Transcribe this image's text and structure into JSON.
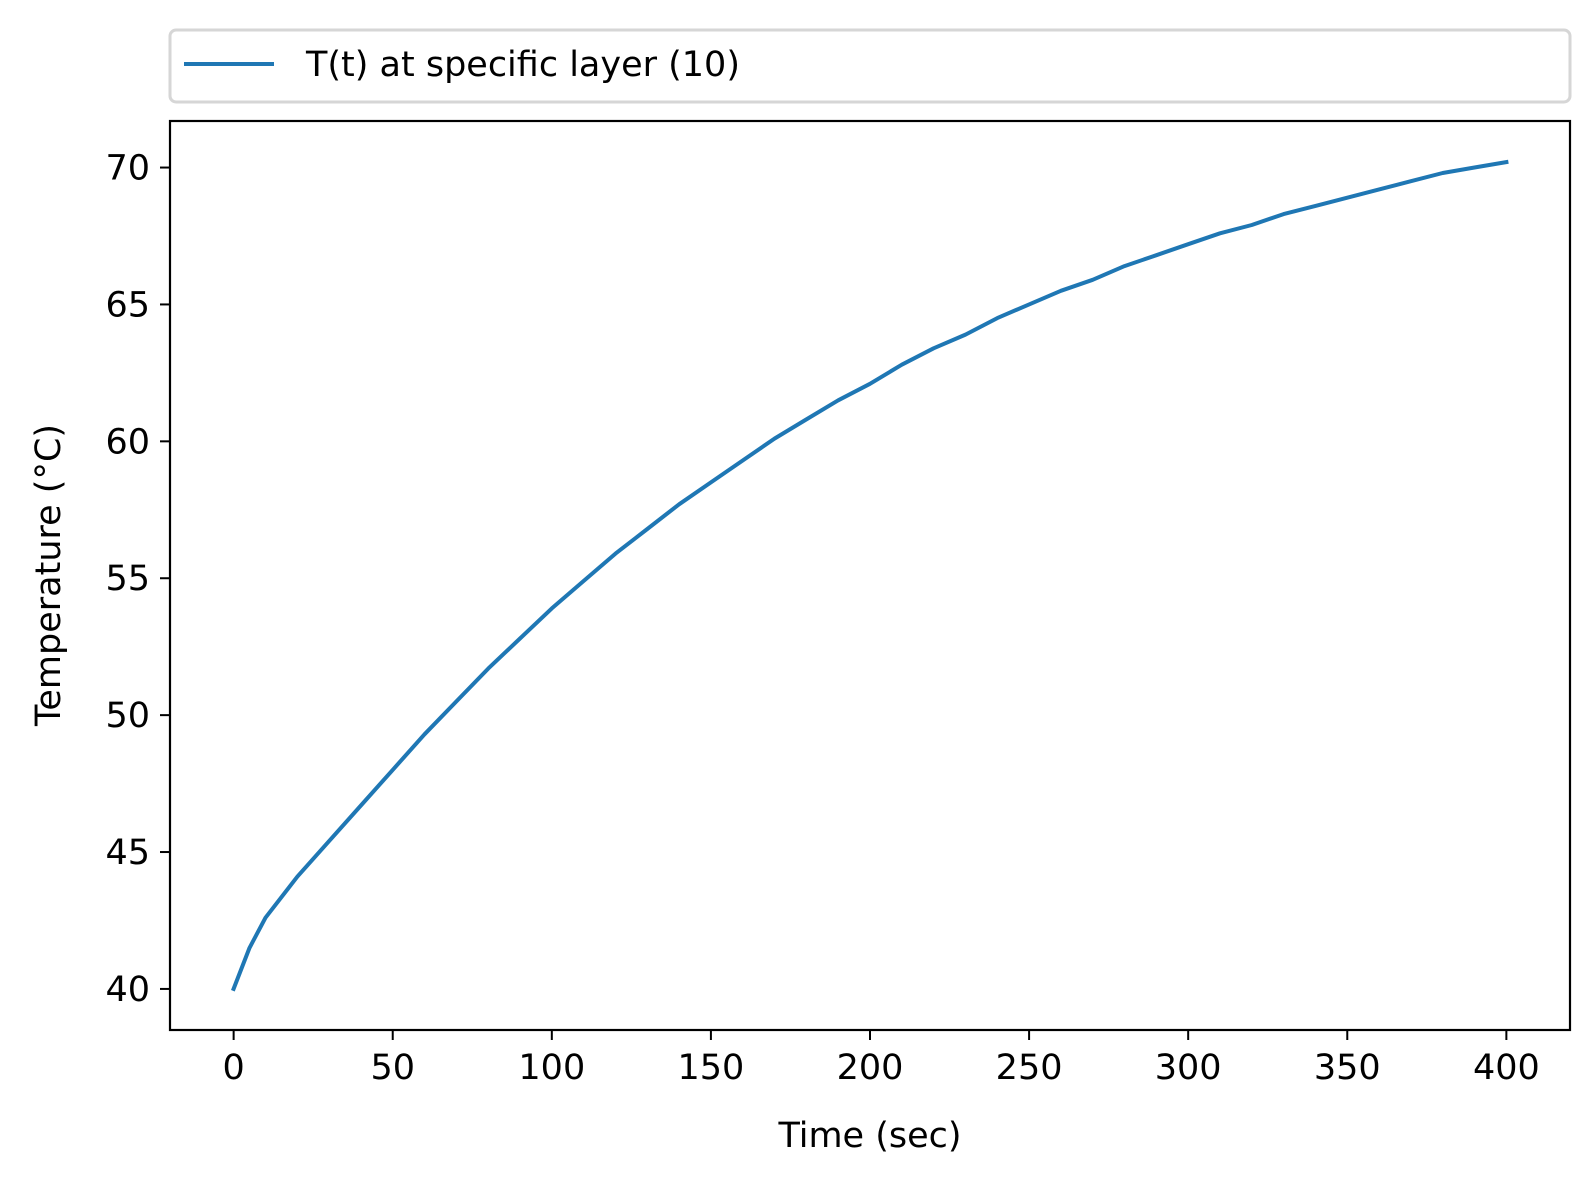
{
  "chart_data": {
    "type": "line",
    "title": "",
    "xlabel": "Time (sec)",
    "ylabel": "Temperature (°C)",
    "xlim": [
      -20,
      420
    ],
    "ylim": [
      38.5,
      71.7
    ],
    "xticks": [
      0,
      50,
      100,
      150,
      200,
      250,
      300,
      350,
      400
    ],
    "yticks": [
      40,
      45,
      50,
      55,
      60,
      65,
      70
    ],
    "xtick_labels": [
      "0",
      "50",
      "100",
      "150",
      "200",
      "250",
      "300",
      "350",
      "400"
    ],
    "ytick_labels": [
      "40",
      "45",
      "50",
      "55",
      "60",
      "65",
      "70"
    ],
    "grid": false,
    "legend": {
      "placement": "top, above plot"
    },
    "series": [
      {
        "name": "T(t) at specific layer (10)",
        "color": "#1f77b4",
        "x": [
          0,
          5,
          10,
          20,
          30,
          40,
          50,
          60,
          70,
          80,
          90,
          100,
          110,
          120,
          130,
          140,
          150,
          160,
          170,
          180,
          190,
          200,
          210,
          220,
          230,
          240,
          250,
          260,
          270,
          280,
          290,
          300,
          310,
          320,
          330,
          340,
          350,
          360,
          370,
          380,
          390,
          400
        ],
        "y": [
          40.0,
          41.5,
          42.6,
          44.1,
          45.4,
          46.7,
          48.0,
          49.3,
          50.5,
          51.7,
          52.8,
          53.9,
          54.9,
          55.9,
          56.8,
          57.7,
          58.5,
          59.3,
          60.1,
          60.8,
          61.5,
          62.1,
          62.8,
          63.4,
          63.9,
          64.5,
          65.0,
          65.5,
          65.9,
          66.4,
          66.8,
          67.2,
          67.6,
          67.9,
          68.3,
          68.6,
          68.9,
          69.2,
          69.5,
          69.8,
          70.0,
          70.2
        ]
      }
    ]
  }
}
